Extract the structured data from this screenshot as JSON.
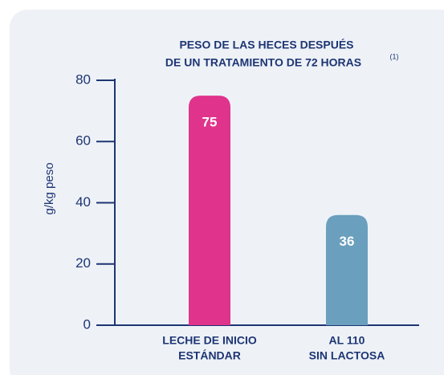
{
  "chart_data": {
    "type": "bar",
    "title": [
      "PESO DE LAS HECES DESPUÉS",
      "DE UN TRATAMIENTO DE 72 HORAS"
    ],
    "title_note": "(1)",
    "y_label": "g/kg peso",
    "categories": [
      [
        "LECHE DE INICIO",
        "ESTÁNDAR"
      ],
      [
        "AL 110",
        "SIN LACTOSA"
      ]
    ],
    "values": [
      75,
      36
    ],
    "colors": [
      "#e0338c",
      "#6a9fbd"
    ],
    "ylim": [
      0,
      80
    ],
    "yticks": [
      0,
      20,
      40,
      60,
      80
    ]
  }
}
